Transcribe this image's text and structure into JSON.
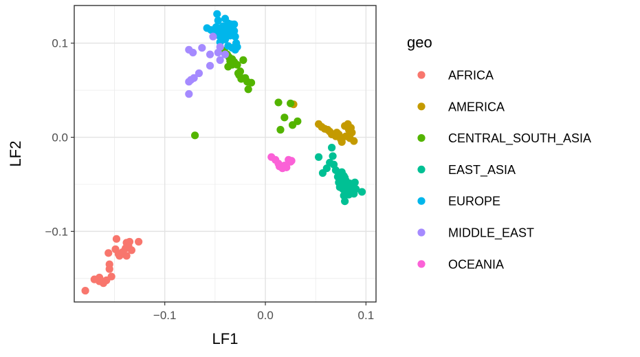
{
  "chart_data": {
    "type": "scatter",
    "xlabel": "LF1",
    "ylabel": "LF2",
    "xlim": [
      -0.19,
      0.11
    ],
    "ylim": [
      -0.175,
      0.14
    ],
    "x_ticks": [
      -0.1,
      0.0,
      0.1
    ],
    "x_tick_labels": [
      "−0.1",
      "0.0",
      "0.1"
    ],
    "y_ticks": [
      -0.1,
      0.0,
      0.1
    ],
    "y_tick_labels": [
      "−0.1",
      "0.0",
      "0.1"
    ],
    "grid": true,
    "legend_title": "geo",
    "legend_position": "right",
    "series": [
      {
        "name": "AFRICA",
        "color": "#F8766D",
        "points": [
          [
            -0.179,
            -0.163
          ],
          [
            -0.17,
            -0.151
          ],
          [
            -0.165,
            -0.149
          ],
          [
            -0.165,
            -0.153
          ],
          [
            -0.161,
            -0.155
          ],
          [
            -0.162,
            -0.153
          ],
          [
            -0.158,
            -0.152
          ],
          [
            -0.153,
            -0.148
          ],
          [
            -0.155,
            -0.14
          ],
          [
            -0.155,
            -0.135
          ],
          [
            -0.156,
            -0.123
          ],
          [
            -0.149,
            -0.119
          ],
          [
            -0.148,
            -0.108
          ],
          [
            -0.146,
            -0.124
          ],
          [
            -0.145,
            -0.126
          ],
          [
            -0.142,
            -0.122
          ],
          [
            -0.139,
            -0.118
          ],
          [
            -0.138,
            -0.112
          ],
          [
            -0.136,
            -0.116
          ],
          [
            -0.135,
            -0.111
          ],
          [
            -0.138,
            -0.126
          ],
          [
            -0.133,
            -0.12
          ],
          [
            -0.126,
            -0.111
          ]
        ]
      },
      {
        "name": "AMERICA",
        "color": "#C49A00",
        "points": [
          [
            0.028,
            0.035
          ],
          [
            0.053,
            0.014
          ],
          [
            0.056,
            0.011
          ],
          [
            0.059,
            0.009
          ],
          [
            0.062,
            0.008
          ],
          [
            0.064,
            0.006
          ],
          [
            0.066,
            0.003
          ],
          [
            0.07,
            0.001
          ],
          [
            0.071,
            0.005
          ],
          [
            0.073,
            0.003
          ],
          [
            0.075,
            -0.002
          ],
          [
            0.076,
            -0.005
          ],
          [
            0.079,
            0.012
          ],
          [
            0.082,
            0.014
          ],
          [
            0.083,
            0.008
          ],
          [
            0.085,
            0.01
          ],
          [
            0.086,
            0.005
          ],
          [
            0.088,
            -0.004
          ],
          [
            0.084,
            -0.001
          ],
          [
            0.08,
            0.001
          ]
        ]
      },
      {
        "name": "CENTRAL_SOUTH_ASIA",
        "color": "#53B400",
        "points": [
          [
            -0.07,
            0.002
          ],
          [
            -0.041,
            0.092
          ],
          [
            -0.038,
            0.088
          ],
          [
            -0.036,
            0.085
          ],
          [
            -0.035,
            0.081
          ],
          [
            -0.033,
            0.083
          ],
          [
            -0.031,
            0.08
          ],
          [
            -0.03,
            0.078
          ],
          [
            -0.033,
            0.077
          ],
          [
            -0.037,
            0.075
          ],
          [
            -0.028,
            0.077
          ],
          [
            -0.025,
            0.07
          ],
          [
            -0.027,
            0.068
          ],
          [
            -0.022,
            0.082
          ],
          [
            -0.026,
            0.066
          ],
          [
            -0.024,
            0.062
          ],
          [
            -0.02,
            0.063
          ],
          [
            -0.018,
            0.059
          ],
          [
            -0.017,
            0.051
          ],
          [
            -0.014,
            0.058
          ],
          [
            0.013,
            0.037
          ],
          [
            0.019,
            0.021
          ],
          [
            0.015,
            0.008
          ],
          [
            0.025,
            0.036
          ],
          [
            0.027,
            0.013
          ],
          [
            0.032,
            0.017
          ]
        ]
      },
      {
        "name": "EAST_ASIA",
        "color": "#00C094",
        "points": [
          [
            0.053,
            -0.021
          ],
          [
            0.057,
            -0.038
          ],
          [
            0.061,
            -0.033
          ],
          [
            0.064,
            -0.027
          ],
          [
            0.066,
            -0.011
          ],
          [
            0.067,
            -0.02
          ],
          [
            0.068,
            -0.029
          ],
          [
            0.07,
            -0.035
          ],
          [
            0.072,
            -0.042
          ],
          [
            0.073,
            -0.048
          ],
          [
            0.074,
            -0.053
          ],
          [
            0.075,
            -0.044
          ],
          [
            0.076,
            -0.05
          ],
          [
            0.077,
            -0.055
          ],
          [
            0.078,
            -0.041
          ],
          [
            0.078,
            -0.062
          ],
          [
            0.079,
            -0.068
          ],
          [
            0.08,
            -0.046
          ],
          [
            0.081,
            -0.058
          ],
          [
            0.082,
            -0.052
          ],
          [
            0.083,
            -0.061
          ],
          [
            0.084,
            -0.049
          ],
          [
            0.085,
            -0.057
          ],
          [
            0.086,
            -0.054
          ],
          [
            0.088,
            -0.06
          ],
          [
            0.089,
            -0.048
          ],
          [
            0.09,
            -0.055
          ],
          [
            0.096,
            -0.058
          ],
          [
            0.076,
            -0.037
          ],
          [
            0.079,
            -0.043
          ]
        ]
      },
      {
        "name": "EUROPE",
        "color": "#00B6EB",
        "points": [
          [
            -0.048,
            0.131
          ],
          [
            -0.047,
            0.124
          ],
          [
            -0.04,
            0.126
          ],
          [
            -0.037,
            0.121
          ],
          [
            -0.034,
            0.12
          ],
          [
            -0.031,
            0.12
          ],
          [
            -0.058,
            0.116
          ],
          [
            -0.054,
            0.114
          ],
          [
            -0.049,
            0.117
          ],
          [
            -0.045,
            0.116
          ],
          [
            -0.042,
            0.118
          ],
          [
            -0.039,
            0.114
          ],
          [
            -0.036,
            0.115
          ],
          [
            -0.031,
            0.113
          ],
          [
            -0.05,
            0.111
          ],
          [
            -0.046,
            0.108
          ],
          [
            -0.043,
            0.111
          ],
          [
            -0.04,
            0.109
          ],
          [
            -0.035,
            0.108
          ],
          [
            -0.03,
            0.107
          ],
          [
            -0.045,
            0.101
          ],
          [
            -0.04,
            0.104
          ],
          [
            -0.029,
            0.1
          ],
          [
            -0.037,
            0.097
          ],
          [
            -0.033,
            0.095
          ],
          [
            -0.03,
            0.093
          ],
          [
            -0.028,
            0.096
          ]
        ]
      },
      {
        "name": "MIDDLE_EAST",
        "color": "#A58AFF",
        "points": [
          [
            -0.076,
            0.093
          ],
          [
            -0.072,
            0.09
          ],
          [
            -0.063,
            0.095
          ],
          [
            -0.055,
            0.088
          ],
          [
            -0.047,
            0.09
          ],
          [
            -0.045,
            0.082
          ],
          [
            -0.04,
            0.088
          ],
          [
            -0.052,
            0.107
          ],
          [
            -0.066,
            0.068
          ],
          [
            -0.071,
            0.063
          ],
          [
            -0.074,
            0.061
          ],
          [
            -0.076,
            0.059
          ],
          [
            -0.076,
            0.046
          ],
          [
            -0.055,
            0.076
          ],
          [
            -0.045,
            0.096
          ]
        ]
      },
      {
        "name": "OCEANIA",
        "color": "#FB61D7",
        "points": [
          [
            0.006,
            -0.021
          ],
          [
            0.01,
            -0.024
          ],
          [
            0.013,
            -0.028
          ],
          [
            0.014,
            -0.031
          ],
          [
            0.017,
            -0.033
          ],
          [
            0.019,
            -0.03
          ],
          [
            0.021,
            -0.032
          ],
          [
            0.023,
            -0.024
          ],
          [
            0.025,
            -0.026
          ],
          [
            0.026,
            -0.025
          ]
        ]
      }
    ]
  }
}
